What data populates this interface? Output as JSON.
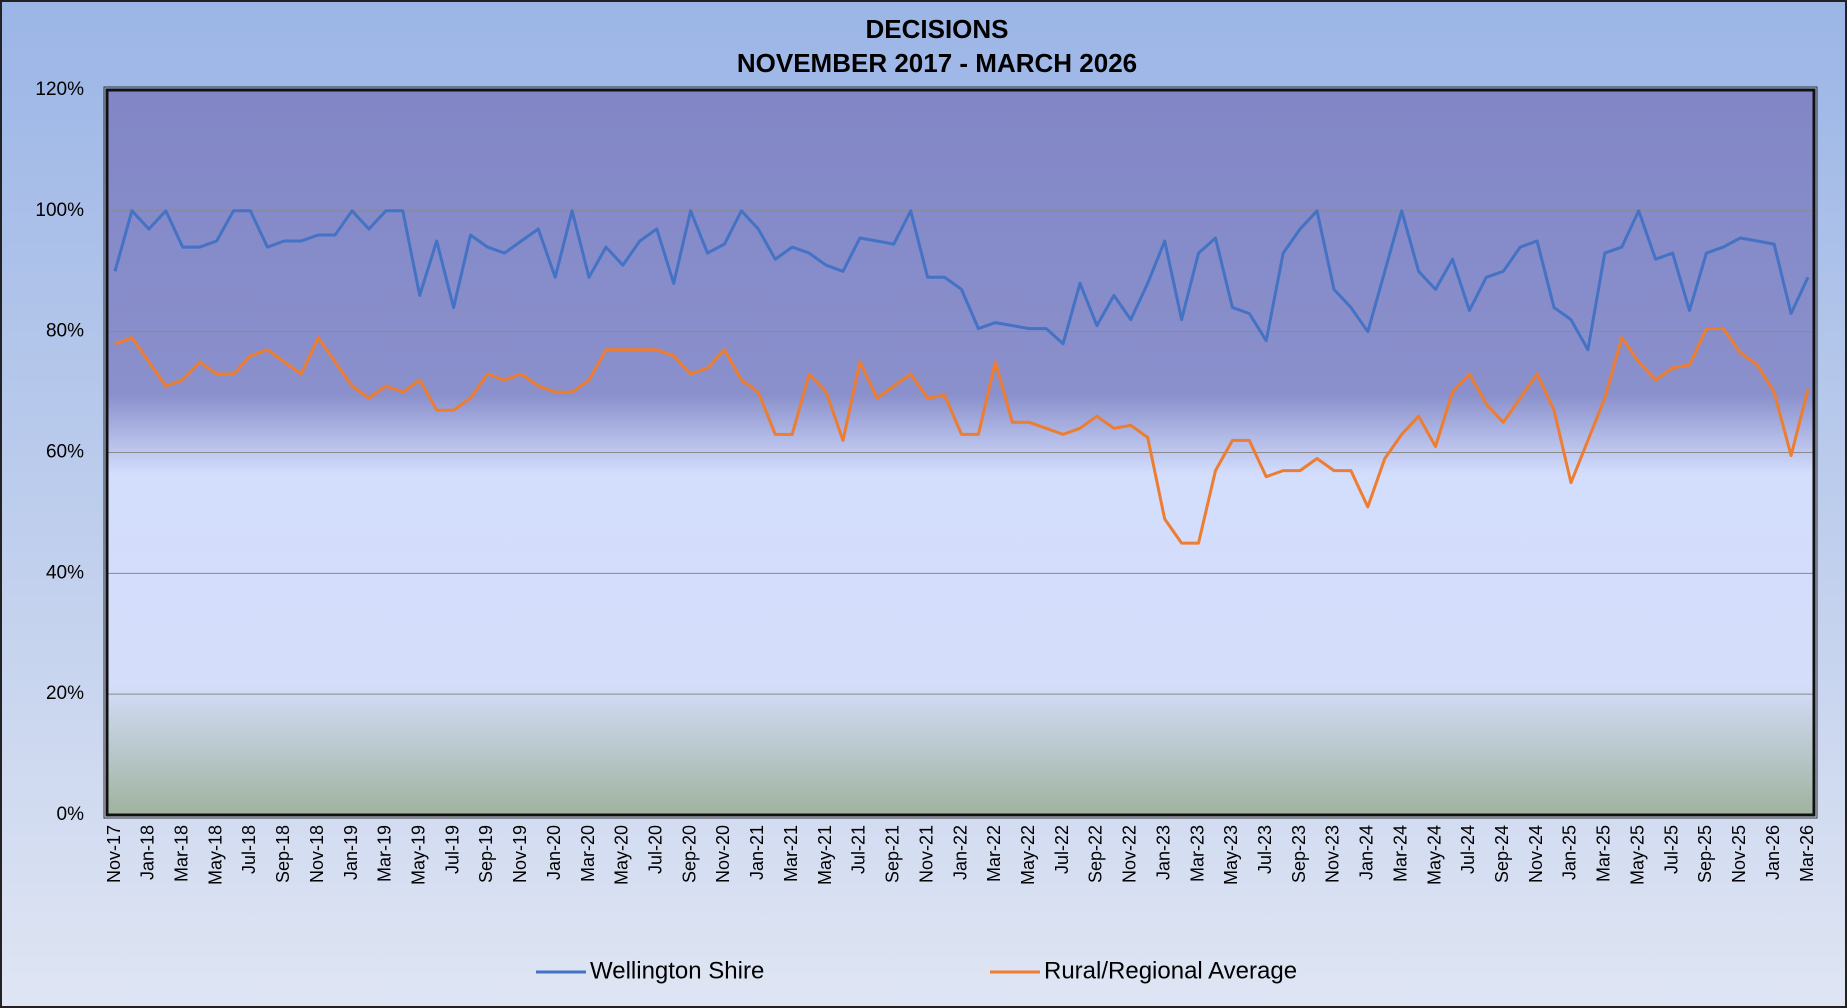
{
  "chart_data": {
    "type": "line",
    "title": "DECISIONS",
    "subtitle": "NOVEMBER 2017 - MARCH 2026",
    "categories": [
      "Nov-17",
      null,
      "Jan-18",
      null,
      "Mar-18",
      null,
      "May-18",
      null,
      "Jul-18",
      null,
      "Sep-18",
      null,
      "Nov-18",
      null,
      "Jan-19",
      null,
      "Mar-19",
      null,
      "May-19",
      null,
      "Jul-19",
      null,
      "Sep-19",
      null,
      "Nov-19",
      null,
      "Jan-20",
      null,
      "Mar-20",
      null,
      "May-20",
      null,
      "Jul-20",
      null,
      "Sep-20",
      null,
      "Nov-20",
      null,
      "Jan-21",
      null,
      "Mar-21",
      null,
      "May-21",
      null,
      "Jul-21",
      null,
      "Sep-21",
      null,
      "Nov-21",
      null,
      "Jan-22",
      null,
      "Mar-22",
      null,
      "May-22",
      null,
      "Jul-22",
      null,
      "Sep-22",
      null,
      "Nov-22",
      null,
      "Jan-23",
      null,
      "Mar-23",
      null,
      "May-23",
      null,
      "Jul-23",
      null,
      "Sep-23",
      null,
      "Nov-23",
      null,
      "Jan-24",
      null,
      "Mar-24",
      null,
      "May-24",
      null,
      "Jul-24",
      null,
      "Sep-24",
      null,
      "Nov-24",
      null,
      "Jan-25",
      null,
      "Mar-25",
      null,
      "May-25",
      null,
      "Jul-25",
      null,
      "Sep-25",
      null,
      "Nov-25",
      null,
      "Jan-26",
      null,
      "Mar-26"
    ],
    "series": [
      {
        "name": "Wellington Shire",
        "color": "#4472c4",
        "values": [
          90,
          100,
          97,
          100,
          94,
          94,
          95,
          100,
          100,
          94,
          95,
          95,
          96,
          96,
          100,
          97,
          100,
          100,
          86,
          95,
          84,
          96,
          94,
          93,
          95,
          97,
          89,
          100,
          89,
          94,
          91,
          95,
          97,
          88,
          100,
          93,
          94.5,
          100,
          97,
          92,
          94,
          93,
          91,
          90,
          95.5,
          95,
          94.5,
          100,
          89,
          89,
          87,
          80.5,
          81.5,
          81,
          80.5,
          80.5,
          78,
          88,
          81,
          86,
          82,
          88,
          95,
          82,
          93,
          95.5,
          84,
          83,
          78.5,
          93,
          97,
          100,
          87,
          84,
          80,
          90,
          100,
          90,
          87,
          92,
          83.5,
          89,
          90,
          94,
          95,
          84,
          82,
          77,
          93,
          94,
          100,
          92,
          93,
          83.5,
          93,
          94,
          95.5,
          95,
          94.5,
          83,
          89
        ]
      },
      {
        "name": "Rural/Regional Average",
        "color": "#ed7d31",
        "values": [
          78,
          79,
          75,
          71,
          72,
          75,
          73,
          73,
          76,
          77,
          75,
          73,
          79,
          75,
          71,
          69,
          71,
          70,
          72,
          67,
          67,
          69,
          73,
          72,
          73,
          71,
          70,
          70,
          72,
          77,
          77,
          77,
          77,
          76,
          73,
          74,
          77,
          72,
          70,
          63,
          63,
          73,
          70,
          62,
          75,
          69,
          71,
          73,
          69,
          69.5,
          63,
          63,
          75,
          65,
          65,
          64,
          63,
          64,
          66,
          64,
          64.5,
          62.5,
          49,
          45,
          45,
          57,
          62,
          62,
          56,
          57,
          57,
          59,
          57,
          57,
          51,
          59,
          63,
          66,
          61,
          70,
          73,
          68,
          65,
          69,
          73,
          67,
          55,
          62,
          69,
          79,
          75,
          72,
          74,
          74.5,
          80.5,
          80.5,
          76.5,
          74.5,
          70,
          59.5,
          70.5
        ]
      }
    ],
    "ylim": [
      0,
      120
    ],
    "yticks": [
      {
        "value": 0,
        "label": "0%"
      },
      {
        "value": 20,
        "label": "20%"
      },
      {
        "value": 40,
        "label": "40%"
      },
      {
        "value": 60,
        "label": "60%"
      },
      {
        "value": 80,
        "label": "80%"
      },
      {
        "value": 100,
        "label": "100%"
      },
      {
        "value": 120,
        "label": "120%"
      }
    ],
    "grid": true,
    "legend": "bottom"
  }
}
